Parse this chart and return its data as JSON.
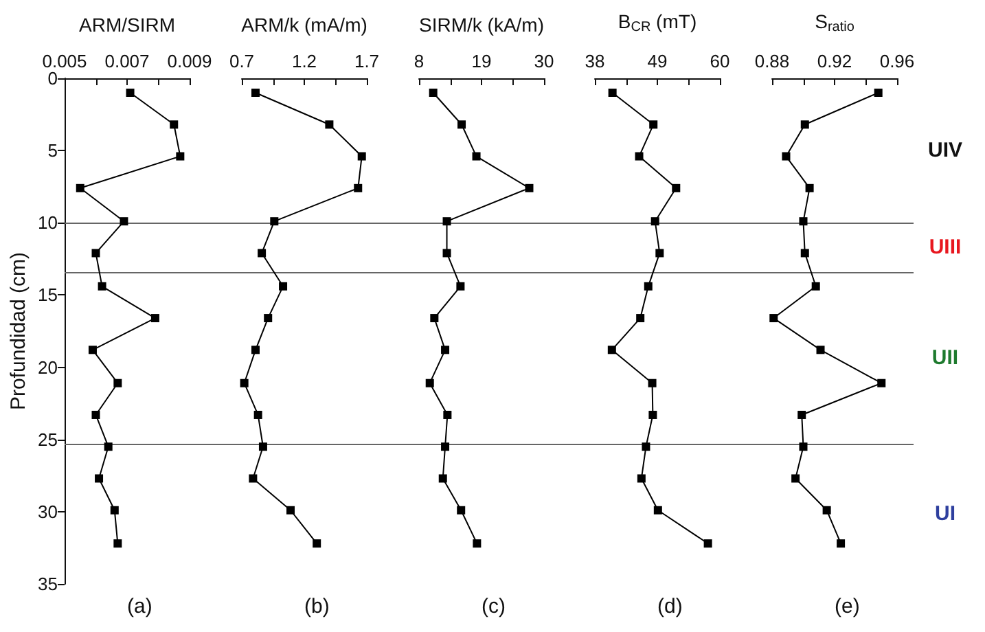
{
  "chart_data": [
    {
      "type": "line",
      "xlabel": "ARM/SIRM",
      "ylabel": "Profundidad (cm)",
      "marker": "square",
      "line_style": "solid",
      "series": [
        {
          "color": "#000000",
          "x": [
            0.0071,
            0.0085,
            0.0087,
            0.0055,
            0.0069,
            0.006,
            0.0062,
            0.0079,
            0.0059,
            0.0067,
            0.006,
            0.0064,
            0.0061,
            0.0066,
            0.0067
          ],
          "values": [
            1,
            3.2,
            5.4,
            7.6,
            9.9,
            12.1,
            14.4,
            16.6,
            18.8,
            21.1,
            23.3,
            25.5,
            27.7,
            29.9,
            32.2
          ]
        }
      ],
      "xlim": [
        0.005,
        0.009
      ],
      "xticks": [
        0.005,
        {
          "value": 0.006,
          "label": null
        },
        0.007,
        {
          "value": 0.008,
          "label": null
        },
        0.009
      ],
      "ylim": [
        35,
        0
      ],
      "yticks": [
        0,
        5,
        10,
        15,
        20,
        25,
        30,
        35
      ],
      "ref_lines": [
        {
          "axis": "y",
          "value": 10
        },
        {
          "axis": "y",
          "value": 13.4
        },
        {
          "axis": "y",
          "value": 25.3
        }
      ],
      "annotations": [
        "(a)",
        "UIV",
        "UIII",
        "UII",
        "UI"
      ]
    },
    {
      "type": "line",
      "xlabel": "ARM/k (mA/m)",
      "marker": "square",
      "line_style": "solid",
      "tick_labels": "x",
      "series": [
        {
          "color": "#000000",
          "x": [
            0.81,
            1.4,
            1.66,
            1.63,
            0.96,
            0.86,
            1.03,
            0.91,
            0.81,
            0.72,
            0.83,
            0.87,
            0.79,
            1.09,
            1.3
          ],
          "values": [
            1,
            3.2,
            5.4,
            7.6,
            9.9,
            12.1,
            14.4,
            16.6,
            18.8,
            21.1,
            23.3,
            25.5,
            27.7,
            29.9,
            32.2
          ]
        }
      ],
      "xlim": [
        0.7,
        1.7
      ],
      "xticks": [
        0.7,
        {
          "value": 0.95,
          "label": null
        },
        1.2,
        {
          "value": 1.45,
          "label": null
        },
        1.7
      ],
      "ylim": [
        35,
        0
      ],
      "annotations": [
        "(b)"
      ]
    },
    {
      "type": "line",
      "xlabel": "SIRM/k (kA/m)",
      "marker": "square",
      "line_style": "solid",
      "tick_labels": "x",
      "series": [
        {
          "color": "#000000",
          "x": [
            10.5,
            15.5,
            18.1,
            27.4,
            12.9,
            12.9,
            15.3,
            10.7,
            12.6,
            9.9,
            13.0,
            12.6,
            12.2,
            15.4,
            18.2
          ],
          "values": [
            1,
            3.2,
            5.4,
            7.6,
            9.9,
            12.1,
            14.4,
            16.6,
            18.8,
            21.1,
            23.3,
            25.5,
            27.7,
            29.9,
            32.2
          ]
        }
      ],
      "xlim": [
        8,
        30
      ],
      "xticks": [
        8,
        {
          "value": 13.5,
          "label": null
        },
        19,
        {
          "value": 24.5,
          "label": null
        },
        30
      ],
      "ylim": [
        35,
        0
      ],
      "annotations": [
        "(c)"
      ]
    },
    {
      "type": "line",
      "xlabel": "B$_{CR}$ (mT)",
      "marker": "square",
      "line_style": "solid",
      "tick_labels": "x",
      "series": [
        {
          "color": "#000000",
          "x": [
            41.1,
            48.3,
            45.8,
            52.3,
            48.6,
            49.4,
            47.4,
            46.0,
            41.0,
            48.1,
            48.2,
            47.0,
            46.2,
            49.1,
            57.9
          ],
          "values": [
            1,
            3.2,
            5.4,
            7.6,
            9.9,
            12.1,
            14.4,
            16.6,
            18.8,
            21.1,
            23.3,
            25.5,
            27.7,
            29.9,
            32.2
          ]
        }
      ],
      "xlim": [
        38,
        60
      ],
      "xticks": [
        38,
        {
          "value": 43.5,
          "label": null
        },
        49,
        {
          "value": 54.5,
          "label": null
        },
        60
      ],
      "ylim": [
        35,
        0
      ],
      "annotations": [
        "(d)"
      ]
    },
    {
      "type": "line",
      "xlabel": "S$_{ratio}$",
      "marker": "square",
      "line_style": "solid",
      "tick_labels": "x",
      "series": [
        {
          "color": "#000000",
          "x": [
            0.948,
            0.901,
            0.889,
            0.904,
            0.9,
            0.901,
            0.908,
            0.881,
            0.911,
            0.95,
            0.899,
            0.9,
            0.895,
            0.915,
            0.924
          ],
          "values": [
            1,
            3.2,
            5.4,
            7.6,
            9.9,
            12.1,
            14.4,
            16.6,
            18.8,
            21.1,
            23.3,
            25.5,
            27.7,
            29.9,
            32.2
          ]
        }
      ],
      "xlim": [
        0.88,
        0.96
      ],
      "xticks": [
        0.88,
        {
          "value": 0.9,
          "label": null
        },
        0.92,
        {
          "value": 0.94,
          "label": null
        },
        0.96
      ],
      "ylim": [
        35,
        0
      ],
      "annotations": [
        "(e)"
      ]
    }
  ]
}
